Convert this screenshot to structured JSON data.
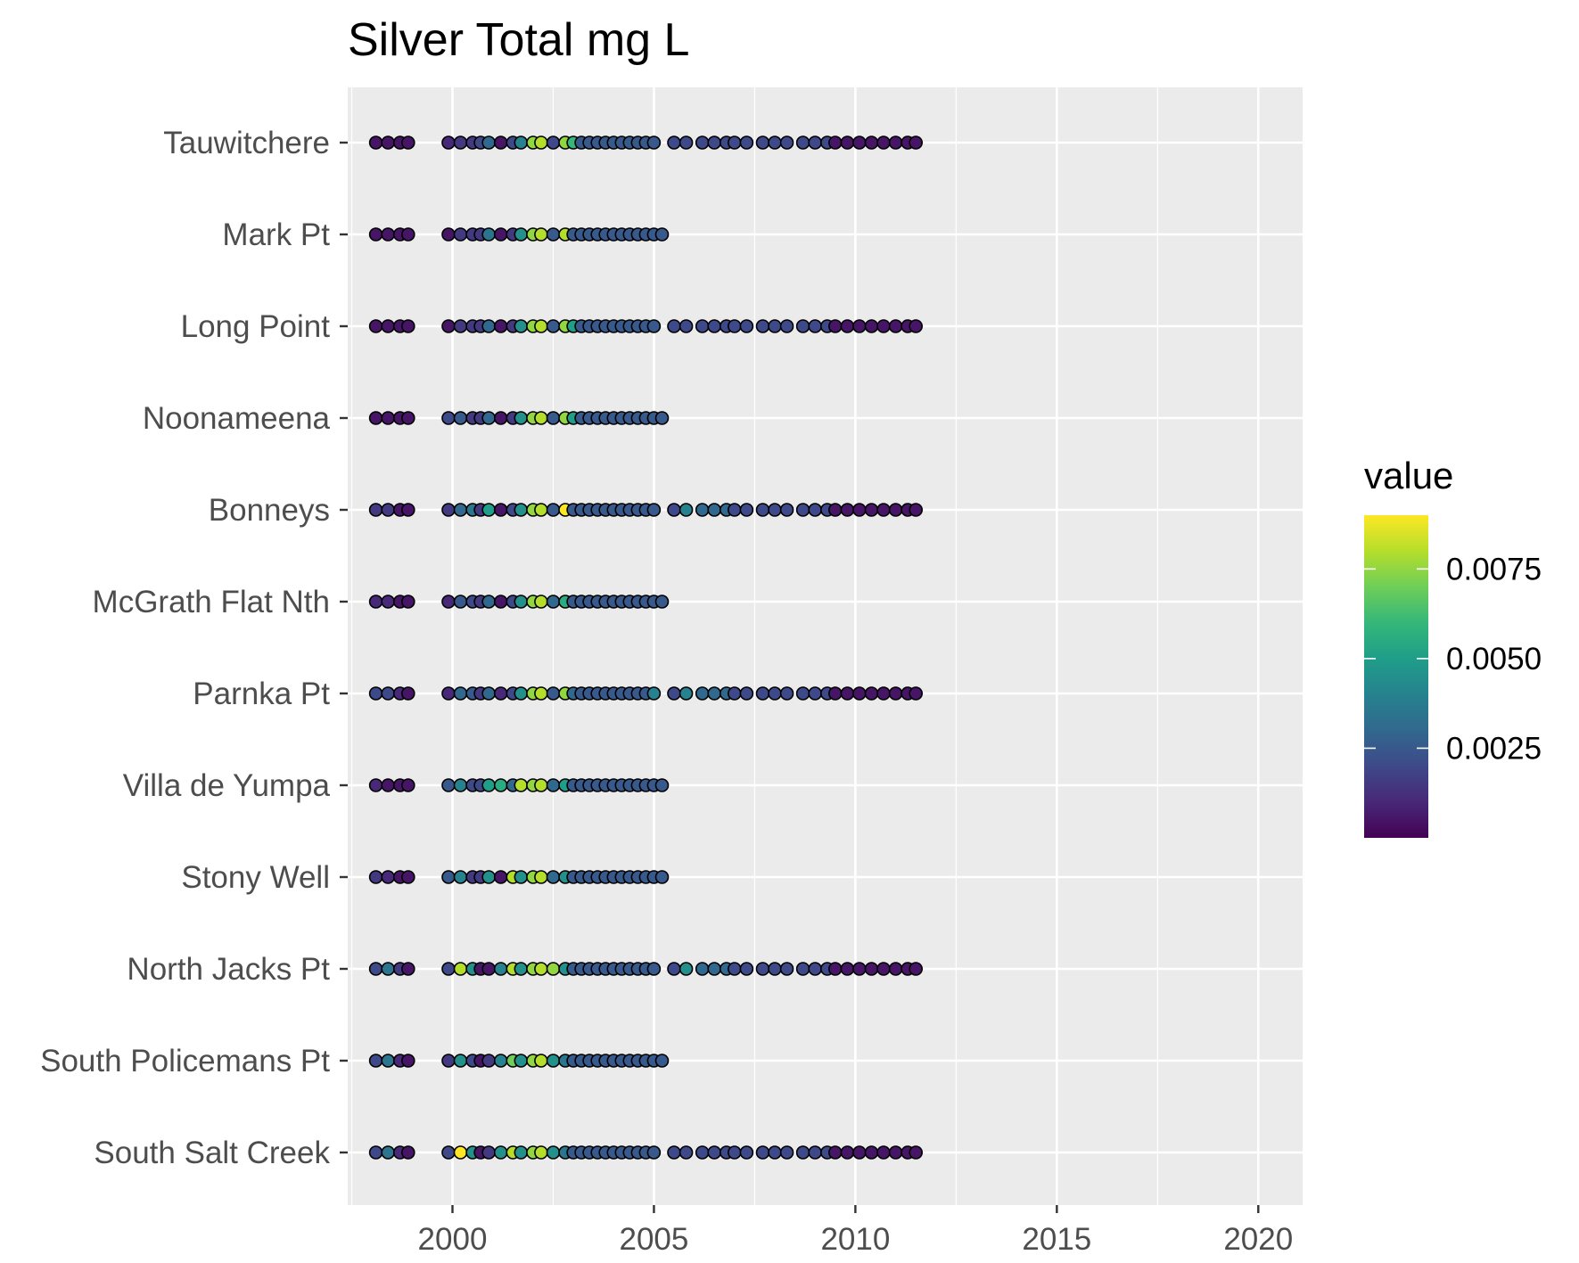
{
  "chart_data": {
    "type": "scatter",
    "title": "Silver Total mg L",
    "xlabel": "",
    "ylabel": "",
    "xlim": [
      1997.4,
      2021.1
    ],
    "x_ticks": [
      2000,
      2005,
      2010,
      2015,
      2020
    ],
    "x_tick_labels": [
      "2000",
      "2005",
      "2010",
      "2015",
      "2020"
    ],
    "grid": true,
    "legend_position": "right",
    "color_scale": {
      "title": "value",
      "palette": "viridis",
      "min": 0.0,
      "max": 0.009,
      "ticks": [
        0.0025,
        0.005,
        0.0075
      ],
      "tick_labels": [
        "0.0025",
        "0.0050",
        "0.0075"
      ],
      "colors": [
        "#440154",
        "#482878",
        "#3e4989",
        "#31688e",
        "#26828e",
        "#1f9e89",
        "#35b779",
        "#6ece58",
        "#b5de2b",
        "#fde725"
      ]
    },
    "categories": [
      "Tauwitchere",
      "Mark Pt",
      "Long Point",
      "Noonameena",
      "Bonneys",
      "McGrath Flat Nth",
      "Parnka Pt",
      "Villa de Yumpa",
      "Stony Well",
      "North Jacks Pt",
      "South Policemans Pt",
      "South Salt Creek"
    ],
    "series": [
      {
        "site": "Tauwitchere",
        "x": [
          1998.1,
          1998.4,
          1998.7,
          1998.9,
          1999.9,
          2000.2,
          2000.5,
          2000.7,
          2000.9,
          2001.2,
          2001.5,
          2001.7,
          2002.0,
          2002.2,
          2002.5,
          2002.8,
          2003.0,
          2003.2,
          2003.4,
          2003.6,
          2003.8,
          2004.0,
          2004.2,
          2004.4,
          2004.6,
          2004.8,
          2005.0,
          2005.5,
          2005.8,
          2006.2,
          2006.5,
          2006.8,
          2007.0,
          2007.3,
          2007.7,
          2008.0,
          2008.3,
          2008.7,
          2009.0,
          2009.3,
          2009.5,
          2009.8,
          2010.1,
          2010.4,
          2010.7,
          2011.0,
          2011.3,
          2011.5
        ],
        "values": [
          0.0005,
          0.0005,
          0.0005,
          0.0005,
          0.001,
          0.0015,
          0.0015,
          0.002,
          0.003,
          0.0005,
          0.002,
          0.004,
          0.0075,
          0.008,
          0.002,
          0.0075,
          0.006,
          0.0025,
          0.0025,
          0.0025,
          0.0025,
          0.0025,
          0.0025,
          0.0025,
          0.0025,
          0.0025,
          0.0025,
          0.002,
          0.002,
          0.002,
          0.002,
          0.002,
          0.002,
          0.002,
          0.002,
          0.002,
          0.002,
          0.002,
          0.002,
          0.002,
          0.0005,
          0.0005,
          0.0005,
          0.0005,
          0.0005,
          0.0005,
          0.0005,
          0.0005
        ]
      },
      {
        "site": "Mark Pt",
        "x": [
          1998.1,
          1998.4,
          1998.7,
          1998.9,
          1999.9,
          2000.2,
          2000.5,
          2000.7,
          2000.9,
          2001.2,
          2001.5,
          2001.7,
          2002.0,
          2002.2,
          2002.5,
          2002.8,
          2003.0,
          2003.2,
          2003.4,
          2003.6,
          2003.8,
          2004.0,
          2004.2,
          2004.4,
          2004.6,
          2004.8,
          2005.0,
          2005.2
        ],
        "values": [
          0.0005,
          0.0005,
          0.0005,
          0.0005,
          0.0005,
          0.0015,
          0.0015,
          0.0015,
          0.0035,
          0.0005,
          0.0015,
          0.0045,
          0.0075,
          0.008,
          0.0025,
          0.008,
          0.0025,
          0.0025,
          0.0025,
          0.0025,
          0.0025,
          0.0025,
          0.0025,
          0.0025,
          0.0025,
          0.0025,
          0.0025,
          0.0025
        ]
      },
      {
        "site": "Long Point",
        "x": [
          1998.1,
          1998.4,
          1998.7,
          1998.9,
          1999.9,
          2000.2,
          2000.5,
          2000.7,
          2000.9,
          2001.2,
          2001.5,
          2001.7,
          2002.0,
          2002.2,
          2002.5,
          2002.8,
          2003.0,
          2003.2,
          2003.4,
          2003.6,
          2003.8,
          2004.0,
          2004.2,
          2004.4,
          2004.6,
          2004.8,
          2005.0,
          2005.5,
          2005.8,
          2006.2,
          2006.5,
          2006.8,
          2007.0,
          2007.3,
          2007.7,
          2008.0,
          2008.3,
          2008.7,
          2009.0,
          2009.3,
          2009.5,
          2009.8,
          2010.1,
          2010.4,
          2010.7,
          2011.0,
          2011.3,
          2011.5
        ],
        "values": [
          0.0005,
          0.0005,
          0.0005,
          0.0005,
          0.0005,
          0.0015,
          0.0015,
          0.0015,
          0.003,
          0.0005,
          0.0015,
          0.0045,
          0.0075,
          0.008,
          0.0025,
          0.0075,
          0.005,
          0.0025,
          0.0025,
          0.0025,
          0.0025,
          0.0025,
          0.0025,
          0.0025,
          0.0025,
          0.0025,
          0.0025,
          0.002,
          0.002,
          0.002,
          0.002,
          0.002,
          0.002,
          0.002,
          0.002,
          0.002,
          0.002,
          0.002,
          0.002,
          0.002,
          0.0005,
          0.0005,
          0.0005,
          0.0005,
          0.0005,
          0.0005,
          0.0005,
          0.0005
        ]
      },
      {
        "site": "Noonameena",
        "x": [
          1998.1,
          1998.4,
          1998.7,
          1998.9,
          1999.9,
          2000.2,
          2000.5,
          2000.7,
          2000.9,
          2001.2,
          2001.5,
          2001.7,
          2002.0,
          2002.2,
          2002.5,
          2002.8,
          2003.0,
          2003.2,
          2003.4,
          2003.6,
          2003.8,
          2004.0,
          2004.2,
          2004.4,
          2004.6,
          2004.8,
          2005.0,
          2005.2
        ],
        "values": [
          0.0005,
          0.0005,
          0.0005,
          0.0005,
          0.002,
          0.0025,
          0.0015,
          0.0015,
          0.003,
          0.0005,
          0.0015,
          0.0045,
          0.0075,
          0.008,
          0.0025,
          0.0075,
          0.005,
          0.0025,
          0.0025,
          0.0025,
          0.0025,
          0.0025,
          0.0025,
          0.0025,
          0.0025,
          0.0025,
          0.0025,
          0.0025
        ]
      },
      {
        "site": "Bonneys",
        "x": [
          1998.1,
          1998.4,
          1998.7,
          1998.9,
          1999.9,
          2000.2,
          2000.5,
          2000.7,
          2000.9,
          2001.2,
          2001.5,
          2001.7,
          2002.0,
          2002.2,
          2002.5,
          2002.8,
          2003.0,
          2003.2,
          2003.4,
          2003.6,
          2003.8,
          2004.0,
          2004.2,
          2004.4,
          2004.6,
          2004.8,
          2005.0,
          2005.5,
          2005.8,
          2006.2,
          2006.5,
          2006.8,
          2007.0,
          2007.3,
          2007.7,
          2008.0,
          2008.3,
          2008.7,
          2009.0,
          2009.3,
          2009.5,
          2009.8,
          2010.1,
          2010.4,
          2010.7,
          2011.0,
          2011.3,
          2011.5
        ],
        "values": [
          0.0015,
          0.0015,
          0.0005,
          0.0005,
          0.0015,
          0.003,
          0.0035,
          0.0015,
          0.005,
          0.0005,
          0.002,
          0.0045,
          0.0075,
          0.008,
          0.0025,
          0.009,
          0.0025,
          0.0025,
          0.0025,
          0.0025,
          0.0025,
          0.0025,
          0.0025,
          0.0025,
          0.0025,
          0.0025,
          0.0025,
          0.002,
          0.004,
          0.003,
          0.003,
          0.003,
          0.002,
          0.002,
          0.002,
          0.002,
          0.002,
          0.002,
          0.002,
          0.002,
          0.0005,
          0.0005,
          0.0005,
          0.0005,
          0.0005,
          0.0005,
          0.0005,
          0.0005
        ]
      },
      {
        "site": "McGrath Flat Nth",
        "x": [
          1998.1,
          1998.4,
          1998.7,
          1998.9,
          1999.9,
          2000.2,
          2000.5,
          2000.7,
          2000.9,
          2001.2,
          2001.5,
          2001.7,
          2002.0,
          2002.2,
          2002.5,
          2002.8,
          2003.0,
          2003.2,
          2003.4,
          2003.6,
          2003.8,
          2004.0,
          2004.2,
          2004.4,
          2004.6,
          2004.8,
          2005.0,
          2005.2
        ],
        "values": [
          0.001,
          0.001,
          0.0005,
          0.0005,
          0.001,
          0.0025,
          0.002,
          0.0015,
          0.003,
          0.0005,
          0.002,
          0.0045,
          0.0075,
          0.008,
          0.003,
          0.0055,
          0.0025,
          0.0025,
          0.0025,
          0.0025,
          0.0025,
          0.0025,
          0.0025,
          0.0025,
          0.0025,
          0.0025,
          0.0025,
          0.0025
        ]
      },
      {
        "site": "Parnka Pt",
        "x": [
          1998.1,
          1998.4,
          1998.7,
          1998.9,
          1999.9,
          2000.2,
          2000.5,
          2000.7,
          2000.9,
          2001.2,
          2001.5,
          2001.7,
          2002.0,
          2002.2,
          2002.5,
          2002.8,
          2003.0,
          2003.2,
          2003.4,
          2003.6,
          2003.8,
          2004.0,
          2004.2,
          2004.4,
          2004.6,
          2004.8,
          2005.0,
          2005.5,
          2005.8,
          2006.2,
          2006.5,
          2006.8,
          2007.0,
          2007.3,
          2007.7,
          2008.0,
          2008.3,
          2008.7,
          2009.0,
          2009.3,
          2009.5,
          2009.8,
          2010.1,
          2010.4,
          2010.7,
          2011.0,
          2011.3,
          2011.5
        ],
        "values": [
          0.002,
          0.002,
          0.001,
          0.0005,
          0.001,
          0.003,
          0.0025,
          0.0015,
          0.003,
          0.001,
          0.002,
          0.0045,
          0.0075,
          0.008,
          0.0025,
          0.0075,
          0.003,
          0.0025,
          0.0025,
          0.0025,
          0.0025,
          0.0025,
          0.0025,
          0.0025,
          0.0025,
          0.0025,
          0.004,
          0.002,
          0.004,
          0.003,
          0.003,
          0.003,
          0.002,
          0.002,
          0.002,
          0.002,
          0.002,
          0.002,
          0.002,
          0.002,
          0.0005,
          0.0005,
          0.0005,
          0.0005,
          0.0005,
          0.0005,
          0.0005,
          0.0005
        ]
      },
      {
        "site": "Villa de Yumpa",
        "x": [
          1998.1,
          1998.4,
          1998.7,
          1998.9,
          1999.9,
          2000.2,
          2000.5,
          2000.7,
          2000.9,
          2001.2,
          2001.5,
          2001.7,
          2002.0,
          2002.2,
          2002.5,
          2002.8,
          2003.0,
          2003.2,
          2003.4,
          2003.6,
          2003.8,
          2004.0,
          2004.2,
          2004.4,
          2004.6,
          2004.8,
          2005.0,
          2005.2
        ],
        "values": [
          0.001,
          0.0005,
          0.0005,
          0.0005,
          0.0025,
          0.004,
          0.002,
          0.002,
          0.005,
          0.0055,
          0.003,
          0.008,
          0.0075,
          0.008,
          0.003,
          0.005,
          0.0025,
          0.0025,
          0.0025,
          0.0025,
          0.0025,
          0.0025,
          0.0025,
          0.0025,
          0.0025,
          0.0025,
          0.0025,
          0.0025
        ]
      },
      {
        "site": "Stony Well",
        "x": [
          1998.1,
          1998.4,
          1998.7,
          1998.9,
          1999.9,
          2000.2,
          2000.5,
          2000.7,
          2000.9,
          2001.2,
          2001.5,
          2001.7,
          2002.0,
          2002.2,
          2002.5,
          2002.8,
          2003.0,
          2003.2,
          2003.4,
          2003.6,
          2003.8,
          2004.0,
          2004.2,
          2004.4,
          2004.6,
          2004.8,
          2005.0,
          2005.2
        ],
        "values": [
          0.0015,
          0.001,
          0.0005,
          0.0005,
          0.0025,
          0.004,
          0.0015,
          0.0015,
          0.0045,
          0.0005,
          0.008,
          0.0045,
          0.0075,
          0.008,
          0.003,
          0.0045,
          0.0025,
          0.0025,
          0.0025,
          0.0025,
          0.0025,
          0.0025,
          0.0025,
          0.0025,
          0.0025,
          0.0025,
          0.0025,
          0.0025
        ]
      },
      {
        "site": "North Jacks Pt",
        "x": [
          1998.1,
          1998.4,
          1998.7,
          1998.9,
          1999.9,
          2000.2,
          2000.5,
          2000.7,
          2000.9,
          2001.2,
          2001.5,
          2001.7,
          2002.0,
          2002.2,
          2002.5,
          2002.8,
          2003.0,
          2003.2,
          2003.4,
          2003.6,
          2003.8,
          2004.0,
          2004.2,
          2004.4,
          2004.6,
          2004.8,
          2005.0,
          2005.5,
          2005.8,
          2006.2,
          2006.5,
          2006.8,
          2007.0,
          2007.3,
          2007.7,
          2008.0,
          2008.3,
          2008.7,
          2009.0,
          2009.3,
          2009.5,
          2009.8,
          2010.1,
          2010.4,
          2010.7,
          2011.0,
          2011.3,
          2011.5
        ],
        "values": [
          0.002,
          0.0035,
          0.0015,
          0.0005,
          0.002,
          0.008,
          0.0045,
          0.0005,
          0.0005,
          0.004,
          0.008,
          0.0045,
          0.0075,
          0.008,
          0.0075,
          0.0045,
          0.0025,
          0.0025,
          0.0025,
          0.0025,
          0.0025,
          0.0025,
          0.0025,
          0.0025,
          0.0025,
          0.0025,
          0.0025,
          0.002,
          0.0045,
          0.003,
          0.003,
          0.003,
          0.002,
          0.002,
          0.002,
          0.002,
          0.002,
          0.002,
          0.002,
          0.002,
          0.0005,
          0.0005,
          0.0005,
          0.0005,
          0.0005,
          0.0005,
          0.0005,
          0.0005
        ]
      },
      {
        "site": "South Policemans Pt",
        "x": [
          1998.1,
          1998.4,
          1998.7,
          1998.9,
          1999.9,
          2000.2,
          2000.5,
          2000.7,
          2000.9,
          2001.2,
          2001.5,
          2001.7,
          2002.0,
          2002.2,
          2002.5,
          2002.8,
          2003.0,
          2003.2,
          2003.4,
          2003.6,
          2003.8,
          2004.0,
          2004.2,
          2004.4,
          2004.6,
          2004.8,
          2005.0,
          2005.2
        ],
        "values": [
          0.002,
          0.0035,
          0.001,
          0.0005,
          0.0015,
          0.0045,
          0.002,
          0.0005,
          0.0015,
          0.004,
          0.007,
          0.0045,
          0.0075,
          0.008,
          0.0045,
          0.0035,
          0.0025,
          0.0025,
          0.0025,
          0.0025,
          0.0025,
          0.0025,
          0.0025,
          0.0025,
          0.0025,
          0.0025,
          0.0025,
          0.0025
        ]
      },
      {
        "site": "South Salt Creek",
        "x": [
          1998.1,
          1998.4,
          1998.7,
          1998.9,
          1999.9,
          2000.2,
          2000.5,
          2000.7,
          2000.9,
          2001.2,
          2001.5,
          2001.7,
          2002.0,
          2002.2,
          2002.5,
          2002.8,
          2003.0,
          2003.2,
          2003.4,
          2003.6,
          2003.8,
          2004.0,
          2004.2,
          2004.4,
          2004.6,
          2004.8,
          2005.0,
          2005.5,
          2005.8,
          2006.2,
          2006.5,
          2006.8,
          2007.0,
          2007.3,
          2007.7,
          2008.0,
          2008.3,
          2008.7,
          2009.0,
          2009.3,
          2009.5,
          2009.8,
          2010.1,
          2010.4,
          2010.7,
          2011.0,
          2011.3,
          2011.5
        ],
        "values": [
          0.002,
          0.0035,
          0.001,
          0.0005,
          0.002,
          0.009,
          0.0045,
          0.0005,
          0.0015,
          0.0045,
          0.008,
          0.0045,
          0.0075,
          0.008,
          0.0045,
          0.0035,
          0.0025,
          0.0025,
          0.0025,
          0.0025,
          0.0025,
          0.0025,
          0.0025,
          0.0025,
          0.0025,
          0.0025,
          0.0025,
          0.002,
          0.002,
          0.002,
          0.002,
          0.002,
          0.002,
          0.002,
          0.002,
          0.002,
          0.002,
          0.002,
          0.002,
          0.002,
          0.0005,
          0.0005,
          0.0005,
          0.0005,
          0.0005,
          0.0005,
          0.0005,
          0.0005
        ]
      }
    ]
  }
}
